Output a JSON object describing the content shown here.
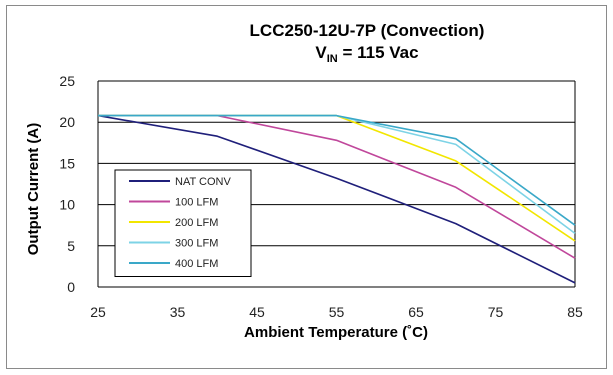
{
  "chart_data": {
    "type": "line",
    "title": "LCC250-12U-7P (Convection)",
    "subtitle_prefix": "V",
    "subtitle_sub": "IN",
    "subtitle_suffix": " = 115 Vac",
    "xlabel": "Ambient Temperature (˚C)",
    "ylabel": "Output Current (A)",
    "xlim": [
      25,
      85
    ],
    "ylim": [
      0,
      25
    ],
    "xticks": [
      25,
      35,
      45,
      55,
      65,
      75,
      85
    ],
    "yticks": [
      0,
      5,
      10,
      15,
      20,
      25
    ],
    "grid": "horizontal",
    "legend_placement": "bottom-left",
    "series": [
      {
        "name": "NAT CONV",
        "color": "#1f1f7a",
        "x": [
          25,
          40,
          55,
          70,
          85
        ],
        "y": [
          20.8,
          18.3,
          13.2,
          7.7,
          0.5
        ]
      },
      {
        "name": "100 LFM",
        "color": "#c0479b",
        "x": [
          25,
          40,
          55,
          70,
          85
        ],
        "y": [
          20.8,
          20.8,
          17.8,
          12.1,
          3.5
        ]
      },
      {
        "name": "200 LFM",
        "color": "#f2e600",
        "x": [
          25,
          40,
          55,
          70,
          85
        ],
        "y": [
          20.8,
          20.8,
          20.8,
          15.3,
          5.6
        ]
      },
      {
        "name": "300 LFM",
        "color": "#7dd3e6",
        "x": [
          25,
          40,
          55,
          70,
          85
        ],
        "y": [
          20.8,
          20.8,
          20.8,
          17.3,
          6.5
        ]
      },
      {
        "name": "400 LFM",
        "color": "#3aa8c8",
        "x": [
          25,
          40,
          55,
          70,
          85
        ],
        "y": [
          20.8,
          20.8,
          20.8,
          18.0,
          7.5
        ]
      }
    ]
  }
}
